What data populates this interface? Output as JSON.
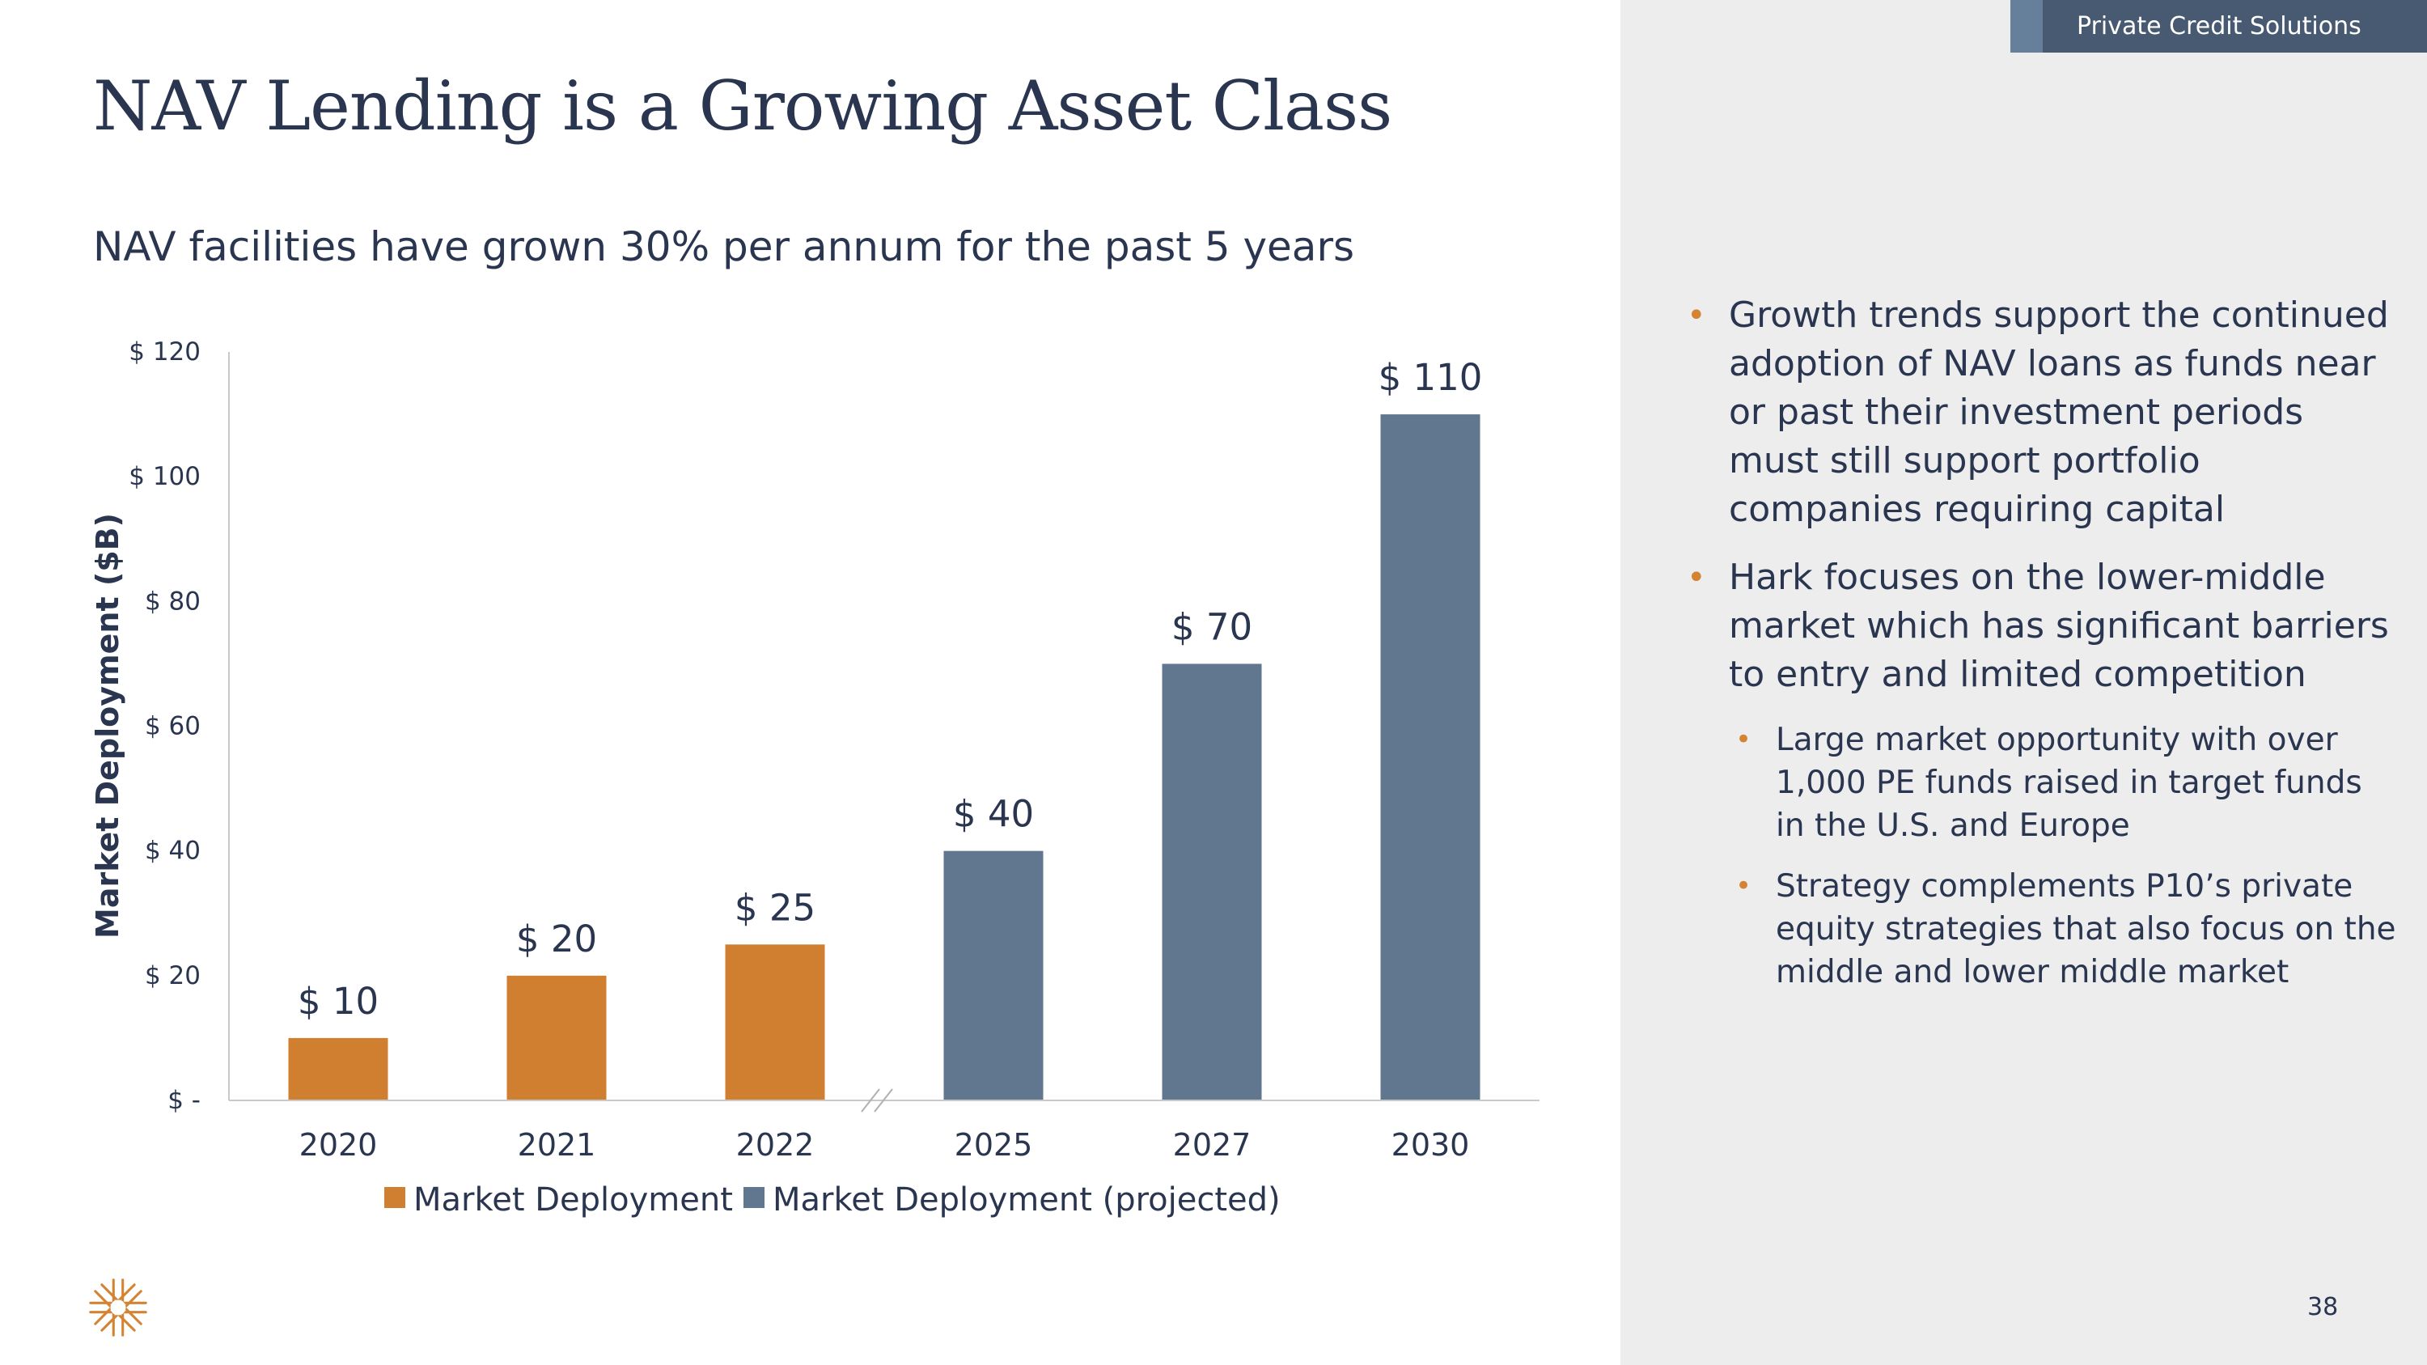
{
  "header": {
    "section_tag": "Private Credit Solutions"
  },
  "slide": {
    "title": "NAV Lending is a Growing Asset Class",
    "subtitle": "NAV facilities have grown 30% per annum for the past 5 years",
    "page_number": "38"
  },
  "colors": {
    "actual": "#d07f30",
    "projected": "#61778f",
    "text": "#2a3550",
    "accent": "#d38332"
  },
  "chart_data": {
    "type": "bar",
    "title": "",
    "xlabel": "",
    "ylabel": "Market Deployment ($B)",
    "ylim": [
      0,
      120
    ],
    "yticks": [
      0,
      20,
      40,
      60,
      80,
      100,
      120
    ],
    "ytick_labels": [
      "$ -",
      "$ 20",
      "$ 40",
      "$ 60",
      "$ 80",
      "$ 100",
      "$ 120"
    ],
    "categories": [
      "2020",
      "2021",
      "2022",
      "2025",
      "2027",
      "2030"
    ],
    "values": [
      10,
      20,
      25,
      40,
      70,
      110
    ],
    "data_labels": [
      "$ 10",
      "$ 20",
      "$ 25",
      "$ 40",
      "$ 70",
      "$ 110"
    ],
    "series_index": [
      0,
      0,
      0,
      1,
      1,
      1
    ],
    "series": [
      {
        "name": "Market Deployment",
        "color": "#d07f30"
      },
      {
        "name": "Market Deployment (projected)",
        "color": "#61778f"
      }
    ],
    "axis_break_after": "2022",
    "grid": false,
    "legend_position": "bottom"
  },
  "sidebar": {
    "bullets": [
      {
        "text": "Growth trends support the continued adoption of NAV loans as funds near or past their investment periods must still support portfolio companies requiring capital",
        "level": 1
      },
      {
        "text": "Hark focuses on the lower-middle market which has significant barriers to entry and limited competition",
        "level": 1
      },
      {
        "text": "Large market opportunity with over 1,000 PE funds raised in target funds in the U.S. and Europe",
        "level": 2
      },
      {
        "text": "Strategy complements P10’s private equity strategies that also focus on the middle and lower middle market",
        "level": 2
      }
    ],
    "bullet_symbol": "•"
  }
}
